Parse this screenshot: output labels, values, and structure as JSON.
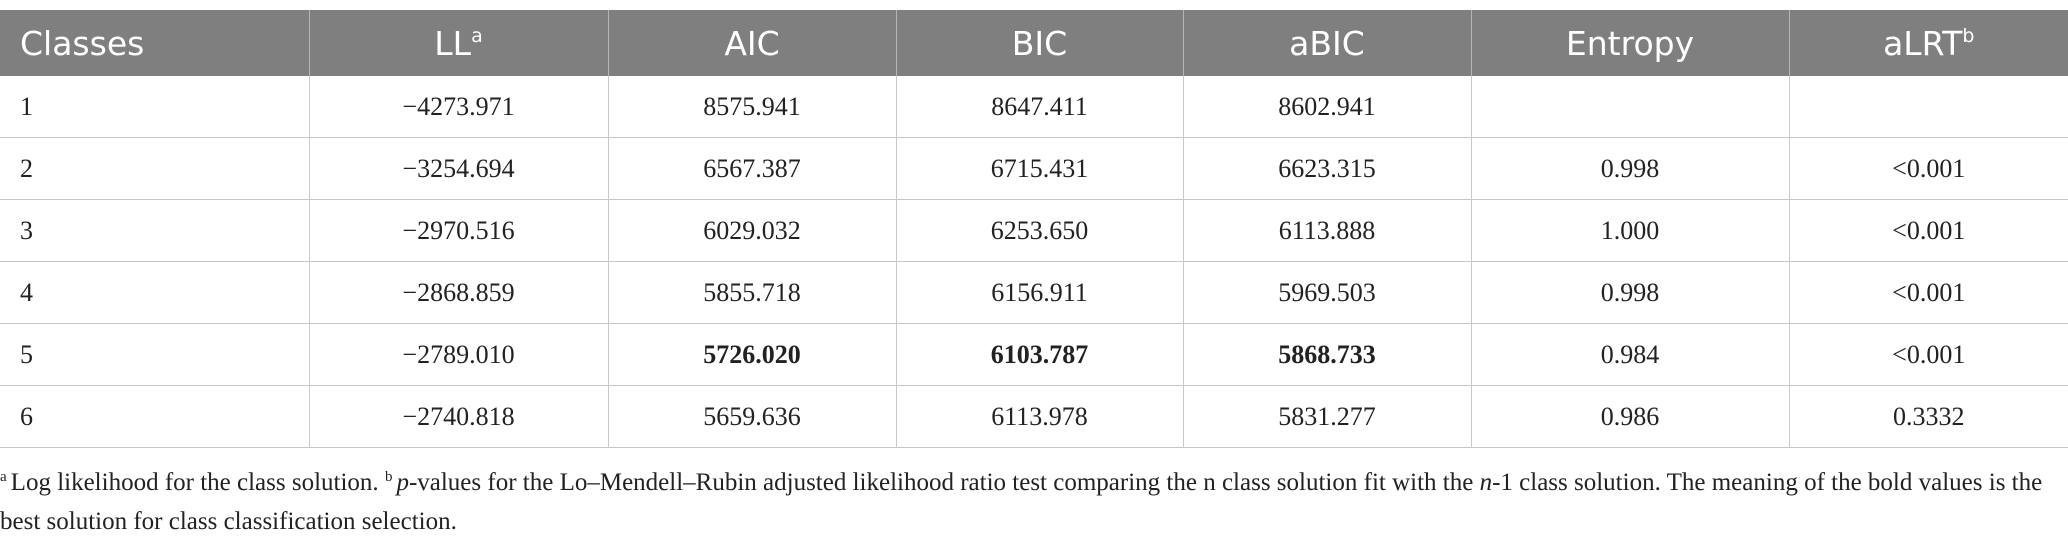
{
  "table": {
    "header": [
      {
        "text": "Classes"
      },
      {
        "text": "LL",
        "sup": "a"
      },
      {
        "text": "AIC"
      },
      {
        "text": "BIC"
      },
      {
        "text": "aBIC"
      },
      {
        "text": "Entropy"
      },
      {
        "text": "aLRT",
        "sup": "b"
      }
    ],
    "rows": [
      [
        "1",
        "−4273.971",
        "8575.941",
        "8647.411",
        "8602.941",
        null,
        null
      ],
      [
        "2",
        "−3254.694",
        "6567.387",
        "6715.431",
        "6623.315",
        "0.998",
        "<0.001"
      ],
      [
        "3",
        "−2970.516",
        "6029.032",
        "6253.650",
        "6113.888",
        "1.000",
        "<0.001"
      ],
      [
        "4",
        "−2868.859",
        "5855.718",
        "6156.911",
        "5969.503",
        "0.998",
        "<0.001"
      ],
      [
        "5",
        "−2789.010",
        "5726.020",
        "6103.787",
        "5868.733",
        "0.984",
        "<0.001"
      ],
      [
        "6",
        "−2740.818",
        "5659.636",
        "6113.978",
        "5831.277",
        "0.986",
        "0.3332"
      ]
    ],
    "bold_cells": [
      [
        4,
        2
      ],
      [
        4,
        3
      ],
      [
        4,
        4
      ]
    ]
  },
  "footnote": [
    {
      "text": "a",
      "style": "sup"
    },
    {
      "text": "Log likelihood for the class solution. "
    },
    {
      "text": "b",
      "style": "sup"
    },
    {
      "text": "p",
      "style": "italic"
    },
    {
      "text": "-values for the Lo–Mendell–Rubin adjusted likelihood ratio test comparing the n class solution fit with the "
    },
    {
      "text": "n",
      "style": "italic"
    },
    {
      "text": "-1 class solution. The meaning of the bold values is the best solution for class classification selection."
    }
  ]
}
